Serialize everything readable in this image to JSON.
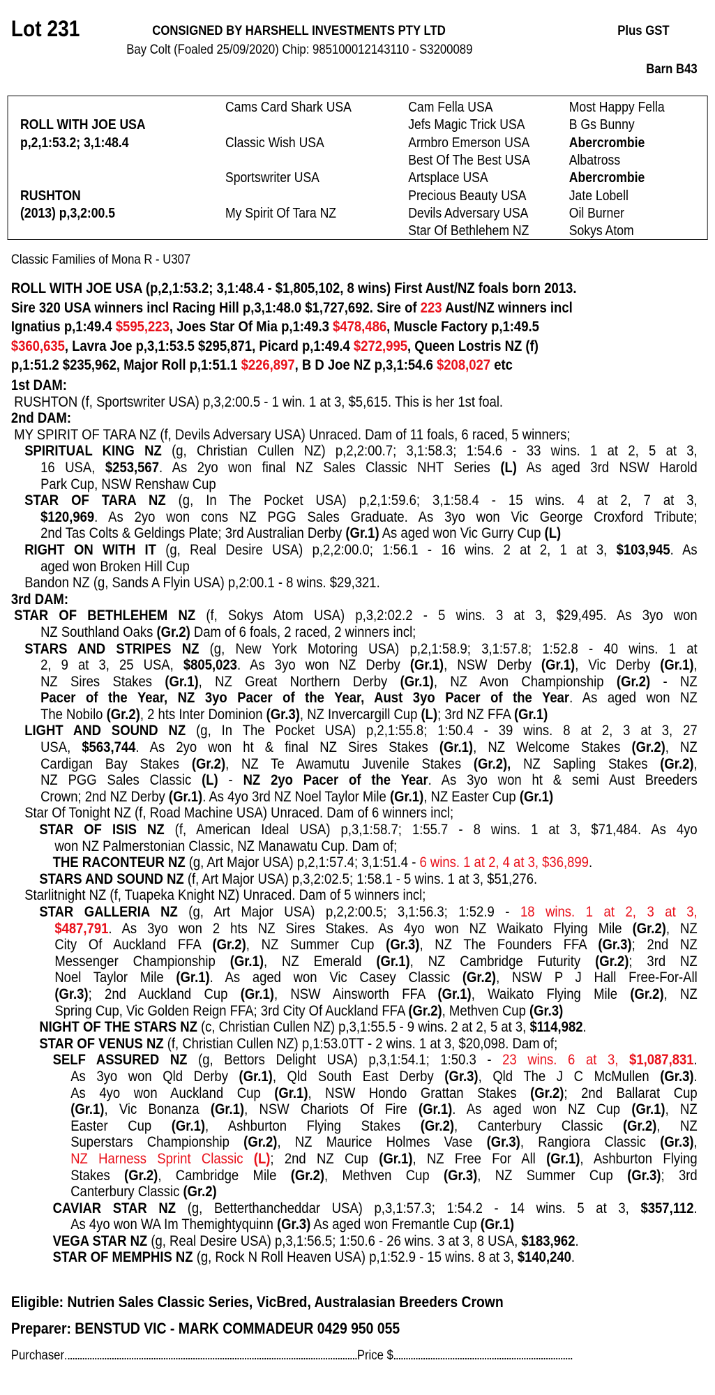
{
  "header": {
    "lot": "Lot 231",
    "consigned": "CONSIGNED BY HARSHELL INVESTMENTS PTY LTD",
    "gst": "Plus GST",
    "description": "Bay Colt (Foaled 25/09/2020) Chip: 985100012143110 - S3200089",
    "barn": "Barn B43"
  },
  "pedigree": {
    "sire": {
      "name": "ROLL WITH JOE USA",
      "record": "p,2,1:53.2; 3,1:48.4"
    },
    "dam": {
      "name": "RUSHTON",
      "record": "(2013) p,3,2:00.5"
    },
    "gen2": [
      "Cams Card Shark USA",
      "Classic Wish USA",
      "Sportswriter USA",
      "My Spirit Of Tara NZ"
    ],
    "gen3": [
      "Cam Fella USA",
      "Jefs Magic Trick USA",
      "Armbro Emerson USA",
      "Best Of The Best USA",
      "Artsplace USA",
      "Precious Beauty USA",
      "Devils Adversary USA",
      "Star Of Bethlehem NZ"
    ],
    "gen4": [
      {
        "name": "Most Happy Fella",
        "bold": false
      },
      {
        "name": "B Gs Bunny",
        "bold": false
      },
      {
        "name": "Abercrombie",
        "bold": true
      },
      {
        "name": "Albatross",
        "bold": false
      },
      {
        "name": "Abercrombie",
        "bold": true
      },
      {
        "name": "Jate Lobell",
        "bold": false
      },
      {
        "name": "Oil Burner",
        "bold": false
      },
      {
        "name": "Sokys Atom",
        "bold": false
      }
    ]
  },
  "family": "Classic Families of Mona R - U307",
  "colors": {
    "highlight": "#e8101a",
    "text": "#000000"
  },
  "sire_summary": [
    [
      "ROLL WITH JOE USA (p,2,1:53.2; 3,1:48.4 - $1,805,102, 8 wins) First Aust/NZ foals born 2013."
    ],
    [
      "Sire 320 USA winners incl Racing Hill p,3,1:48.0 $1,727,692. Sire of ",
      {
        "r": "223"
      },
      " Aust/NZ winners  incl"
    ],
    [
      "Ignatius p,1:49.4 ",
      {
        "r": "$595,223"
      },
      ", Joes Star Of Mia p,1:49.3 ",
      {
        "r": "$478,486"
      },
      ", Muscle Factory p,1:49.5"
    ],
    [
      {
        "r": "$360,635"
      },
      ", Lavra Joe p,3,1:53.5 $295,871, Picard p,1:49.4 ",
      {
        "r": "$272,995"
      },
      ", Queen Lostris NZ (f)"
    ],
    [
      "p,1:51.2 $235,962, Major Roll p,1:51.1 ",
      {
        "r": "$226,897"
      },
      ", B D Joe NZ p,3,1:54.6 ",
      {
        "r": "$208,027"
      },
      " etc"
    ]
  ],
  "body": [
    {
      "lines": [
        [
          {
            "b": "1st DAM:"
          }
        ]
      ]
    },
    {
      "lines": [
        [
          "RUSHTON (f, Sportswriter USA) p,3,2:00.5 - 1 win. 1 at 3, $5,615. This is her 1st foal."
        ]
      ]
    },
    {
      "lines": [
        [
          {
            "b": "2nd DAM:"
          }
        ]
      ]
    },
    {
      "lines": [
        [
          "MY SPIRIT OF TARA NZ (f, Devils Adversary USA) Unraced. Dam of 11 foals, 6 raced, 5 winners;"
        ]
      ]
    },
    {
      "lines": [
        [
          {
            "b": "SPIRITUAL KING NZ"
          },
          " (g, Christian Cullen NZ) p,2,2:00.7; 3,1:58.3; 1:54.6 - 33 wins. 1 at 2, 5 at 3,"
        ],
        [
          "16 USA, ",
          {
            "b": "$253,567"
          },
          ". As 2yo won final NZ Sales Classic NHT Series ",
          {
            "b": "(L)"
          },
          " As aged 3rd NSW Harold"
        ],
        [
          "Park Cup, NSW Renshaw Cup"
        ]
      ]
    },
    {
      "lines": [
        [
          {
            "b": "STAR OF TARA NZ"
          },
          " (g, In The Pocket USA) p,2,1:59.6; 3,1:58.4 - 15 wins. 4 at 2, 7 at 3,"
        ],
        [
          {
            "b": "$120,969"
          },
          ". As 2yo won cons NZ PGG Sales Graduate. As 3yo won Vic George Croxford Tribute;"
        ],
        [
          "2nd Tas Colts & Geldings Plate; 3rd Australian Derby ",
          {
            "b": "(Gr.1)"
          },
          " As aged won Vic Gurry Cup ",
          {
            "b": "(L)"
          }
        ]
      ]
    },
    {
      "lines": [
        [
          {
            "b": "RIGHT ON WITH IT"
          },
          " (g, Real Desire USA) p,2,2:00.0; 1:56.1 - 16 wins. 2 at 2, 1 at 3, ",
          {
            "b": "$103,945"
          },
          ". As"
        ],
        [
          "aged won Broken Hill Cup"
        ]
      ]
    },
    {
      "lines": [
        [
          "Bandon NZ (g, Sands A Flyin USA) p,2:00.1 - 8 wins. $29,321."
        ]
      ]
    },
    {
      "lines": [
        [
          {
            "b": "3rd DAM:"
          }
        ]
      ]
    },
    {
      "lines": [
        [
          {
            "b": "STAR OF BETHLEHEM NZ"
          },
          " (f, Sokys Atom USA) p,3,2:02.2 - 5 wins. 3 at 3, $29,495. As 3yo won"
        ],
        [
          "NZ Southland Oaks ",
          {
            "b": "(Gr.2)"
          },
          " Dam of 6 foals, 2 raced, 2 winners incl;"
        ]
      ]
    },
    {
      "lines": [
        [
          {
            "b": "STARS AND STRIPES NZ"
          },
          " (g, New York Motoring USA) p,2,1:58.9; 3,1:57.8; 1:52.8 - 40 wins. 1 at"
        ],
        [
          "2, 9 at 3, 25 USA, ",
          {
            "b": "$805,023"
          },
          ". As 3yo won NZ Derby ",
          {
            "b": "(Gr.1)"
          },
          ", NSW Derby ",
          {
            "b": "(Gr.1)"
          },
          ", Vic Derby ",
          {
            "b": "(Gr.1)"
          },
          ","
        ],
        [
          "NZ Sires Stakes ",
          {
            "b": "(Gr.1)"
          },
          ", NZ Great Northern Derby ",
          {
            "b": "(Gr.1)"
          },
          ", NZ Avon Championship ",
          {
            "b": "(Gr.2)"
          },
          " - NZ"
        ],
        [
          {
            "b": "Pacer of the Year, NZ 3yo Pacer of the Year, Aust 3yo Pacer of the Year"
          },
          ". As aged won NZ"
        ],
        [
          "The Nobilo ",
          {
            "b": "(Gr.2)"
          },
          ", 2 hts Inter Dominion ",
          {
            "b": "(Gr.3)"
          },
          ", NZ Invercargill Cup ",
          {
            "b": "(L)"
          },
          "; 3rd NZ FFA ",
          {
            "b": "(Gr.1)"
          }
        ]
      ]
    },
    {
      "lines": [
        [
          {
            "b": "LIGHT AND SOUND NZ"
          },
          " (g, In The Pocket USA) p,2,1:55.8; 1:50.4 - 39 wins. 8 at 2, 3 at 3, 27"
        ],
        [
          "USA, ",
          {
            "b": "$563,744"
          },
          ". As 2yo won ht & final NZ Sires Stakes ",
          {
            "b": "(Gr.1)"
          },
          ", NZ Welcome Stakes ",
          {
            "b": "(Gr.2)"
          },
          ", NZ"
        ],
        [
          "Cardigan Bay Stakes ",
          {
            "b": "(Gr.2)"
          },
          ", NZ Te Awamutu Juvenile Stakes ",
          {
            "b": "(Gr.2),"
          },
          " NZ Sapling Stakes ",
          {
            "b": "(Gr.2)"
          },
          ","
        ],
        [
          "NZ PGG Sales Classic ",
          {
            "b": "(L)"
          },
          " - ",
          {
            "b": "NZ 2yo Pacer of the Year"
          },
          ". As 3yo won ht & semi Aust Breeders"
        ],
        [
          "Crown; 2nd NZ Derby ",
          {
            "b": "(Gr.1)"
          },
          ". As 4yo 3rd NZ Noel Taylor Mile ",
          {
            "b": "(Gr.1)"
          },
          ", NZ Easter Cup ",
          {
            "b": "(Gr.1)"
          }
        ]
      ]
    },
    {
      "lines": [
        [
          "Star Of Tonight NZ (f, Road Machine USA) Unraced. Dam of 6 winners incl;"
        ]
      ]
    },
    {
      "lines": [
        [
          {
            "b": "STAR OF ISIS NZ"
          },
          " (f, American Ideal USA) p,3,1:58.7; 1:55.7 - 8 wins. 1 at 3, $71,484. As 4yo"
        ],
        [
          "won NZ Palmerstonian Classic, NZ Manawatu Cup. Dam of;"
        ]
      ]
    },
    {
      "lines": [
        [
          {
            "b": "THE RACONTEUR NZ"
          },
          " (g, Art Major USA) p,2,1:57.4; 3,1:51.4 - ",
          {
            "r": "6 wins. 1 at 2, 4 at 3, $36,899"
          },
          "."
        ]
      ]
    },
    {
      "lines": [
        [
          {
            "b": "STARS AND SOUND NZ"
          },
          " (f, Art Major USA) p,3,2:02.5; 1:58.1 - 5 wins. 1 at 3, $51,276."
        ]
      ]
    },
    {
      "lines": [
        [
          "Starlitnight NZ (f, Tuapeka Knight NZ) Unraced. Dam of 5 winners incl;"
        ]
      ]
    },
    {
      "lines": [
        [
          {
            "b": "STAR GALLERIA NZ"
          },
          " (g, Art Major USA) p,2,2:00.5; 3,1:56.3; 1:52.9 - ",
          {
            "r": "18 wins. 1 at 2, 3 at 3,"
          }
        ],
        [
          {
            "rb": "$487,791"
          },
          ". As 3yo won 2 hts NZ Sires Stakes. As 4yo won NZ Waikato Flying Mile ",
          {
            "b": "(Gr.2)"
          },
          ", NZ"
        ],
        [
          "City Of Auckland FFA ",
          {
            "b": "(Gr.2)"
          },
          ", NZ Summer Cup ",
          {
            "b": "(Gr.3)"
          },
          ", NZ The Founders FFA ",
          {
            "b": "(Gr.3)"
          },
          "; 2nd NZ"
        ],
        [
          "Messenger Championship ",
          {
            "b": "(Gr.1)"
          },
          ", NZ Emerald ",
          {
            "b": "(Gr.1)"
          },
          ", NZ Cambridge Futurity ",
          {
            "b": "(Gr.2)"
          },
          "; 3rd NZ"
        ],
        [
          "Noel Taylor Mile ",
          {
            "b": "(Gr.1)"
          },
          ". As aged won Vic Casey Classic ",
          {
            "b": "(Gr.2)"
          },
          ", NSW P J Hall Free-For-All"
        ],
        [
          {
            "b": "(Gr.3)"
          },
          "; 2nd Auckland Cup ",
          {
            "b": "(Gr.1)"
          },
          ", NSW Ainsworth FFA ",
          {
            "b": "(Gr.1)"
          },
          ", Waikato Flying Mile ",
          {
            "b": "(Gr.2)"
          },
          ", NZ"
        ],
        [
          "Spring Cup, Vic Golden Reign FFA; 3rd City Of Auckland FFA ",
          {
            "b": "(Gr.2)"
          },
          ", Methven Cup ",
          {
            "b": "(Gr.3)"
          }
        ]
      ]
    },
    {
      "lines": [
        [
          {
            "b": "NIGHT OF THE STARS NZ"
          },
          " (c, Christian Cullen NZ) p,3,1:55.5 - 9 wins. 2 at 2, 5 at 3, ",
          {
            "b": "$114,982"
          },
          "."
        ]
      ]
    },
    {
      "lines": [
        [
          {
            "b": "STAR OF VENUS NZ"
          },
          " (f, Christian Cullen NZ) p,1:53.0TT - 2 wins. 1 at 3, $20,098. Dam of;"
        ]
      ]
    },
    {
      "lines": [
        [
          {
            "b": "SELF ASSURED NZ"
          },
          " (g, Bettors Delight USA) p,3,1:54.1; 1:50.3 - ",
          {
            "r": "23 wins. 6 at 3, "
          },
          {
            "rb": "$1,087,831"
          },
          "."
        ],
        [
          "As 3yo won Qld Derby ",
          {
            "b": "(Gr.1)"
          },
          ", Qld South East Derby ",
          {
            "b": "(Gr.3)"
          },
          ", Qld The J C McMullen ",
          {
            "b": "(Gr.3)"
          },
          "."
        ],
        [
          "As 4yo won Auckland Cup ",
          {
            "b": "(Gr.1)"
          },
          ", NSW Hondo Grattan Stakes ",
          {
            "b": "(Gr.2)"
          },
          "; 2nd Ballarat Cup"
        ],
        [
          {
            "b": "(Gr.1)"
          },
          ", Vic Bonanza ",
          {
            "b": "(Gr.1)"
          },
          ", NSW Chariots Of Fire ",
          {
            "b": "(Gr.1)"
          },
          ". As aged won NZ Cup ",
          {
            "b": "(Gr.1)"
          },
          ", NZ"
        ],
        [
          "Easter Cup ",
          {
            "b": "(Gr.1)"
          },
          ", Ashburton Flying Stakes ",
          {
            "b": "(Gr.2)"
          },
          ", Canterbury Classic ",
          {
            "b": "(Gr.2)"
          },
          ", NZ"
        ],
        [
          "Superstars Championship ",
          {
            "b": "(Gr.2)"
          },
          ", NZ Maurice Holmes Vase ",
          {
            "b": "(Gr.3)"
          },
          ", Rangiora Classic ",
          {
            "b": "(Gr.3)"
          },
          ","
        ],
        [
          {
            "r": "NZ Harness Sprint Classic "
          },
          {
            "rb": "(L)"
          },
          "; 2nd NZ Cup ",
          {
            "b": "(Gr.1)"
          },
          ", NZ Free For All ",
          {
            "b": "(Gr.1)"
          },
          ", Ashburton Flying"
        ],
        [
          "Stakes ",
          {
            "b": "(Gr.2)"
          },
          ", Cambridge Mile ",
          {
            "b": "(Gr.2)"
          },
          ", Methven Cup ",
          {
            "b": "(Gr.3)"
          },
          ", NZ Summer Cup ",
          {
            "b": "(Gr.3)"
          },
          "; 3rd"
        ],
        [
          "Canterbury Classic ",
          {
            "b": "(Gr.2)"
          }
        ]
      ]
    },
    {
      "lines": [
        [
          {
            "b": "CAVIAR STAR NZ"
          },
          " (g, Betterthancheddar USA) p,3,1:57.3; 1:54.2 - 14 wins. 5 at 3, ",
          {
            "b": "$357,112"
          },
          "."
        ],
        [
          "As 4yo won WA Im Themightyquinn ",
          {
            "b": "(Gr.3)"
          },
          " As aged won Fremantle Cup ",
          {
            "b": "(Gr.1)"
          }
        ]
      ]
    },
    {
      "lines": [
        [
          {
            "b": "VEGA STAR NZ"
          },
          " (g, Real Desire USA) p,3,1:56.5; 1:50.6 - 26 wins. 3 at 3, 8 USA, ",
          {
            "b": "$183,962"
          },
          "."
        ]
      ]
    },
    {
      "lines": [
        [
          {
            "b": "STAR OF MEMPHIS NZ"
          },
          " (g, Rock N Roll Heaven USA) p,1:52.9 - 15 wins. 8 at 3, ",
          {
            "b": "$140,240"
          },
          "."
        ]
      ]
    }
  ],
  "footer": {
    "eligible": "Eligible: Nutrien Sales Classic Series, VicBred, Australasian Breeders Crown",
    "preparer": "Preparer: BENSTUD VIC - MARK COMMADEUR 0429 950 055",
    "purchaser_label": "Purchaser",
    "price_label": "Price $"
  }
}
